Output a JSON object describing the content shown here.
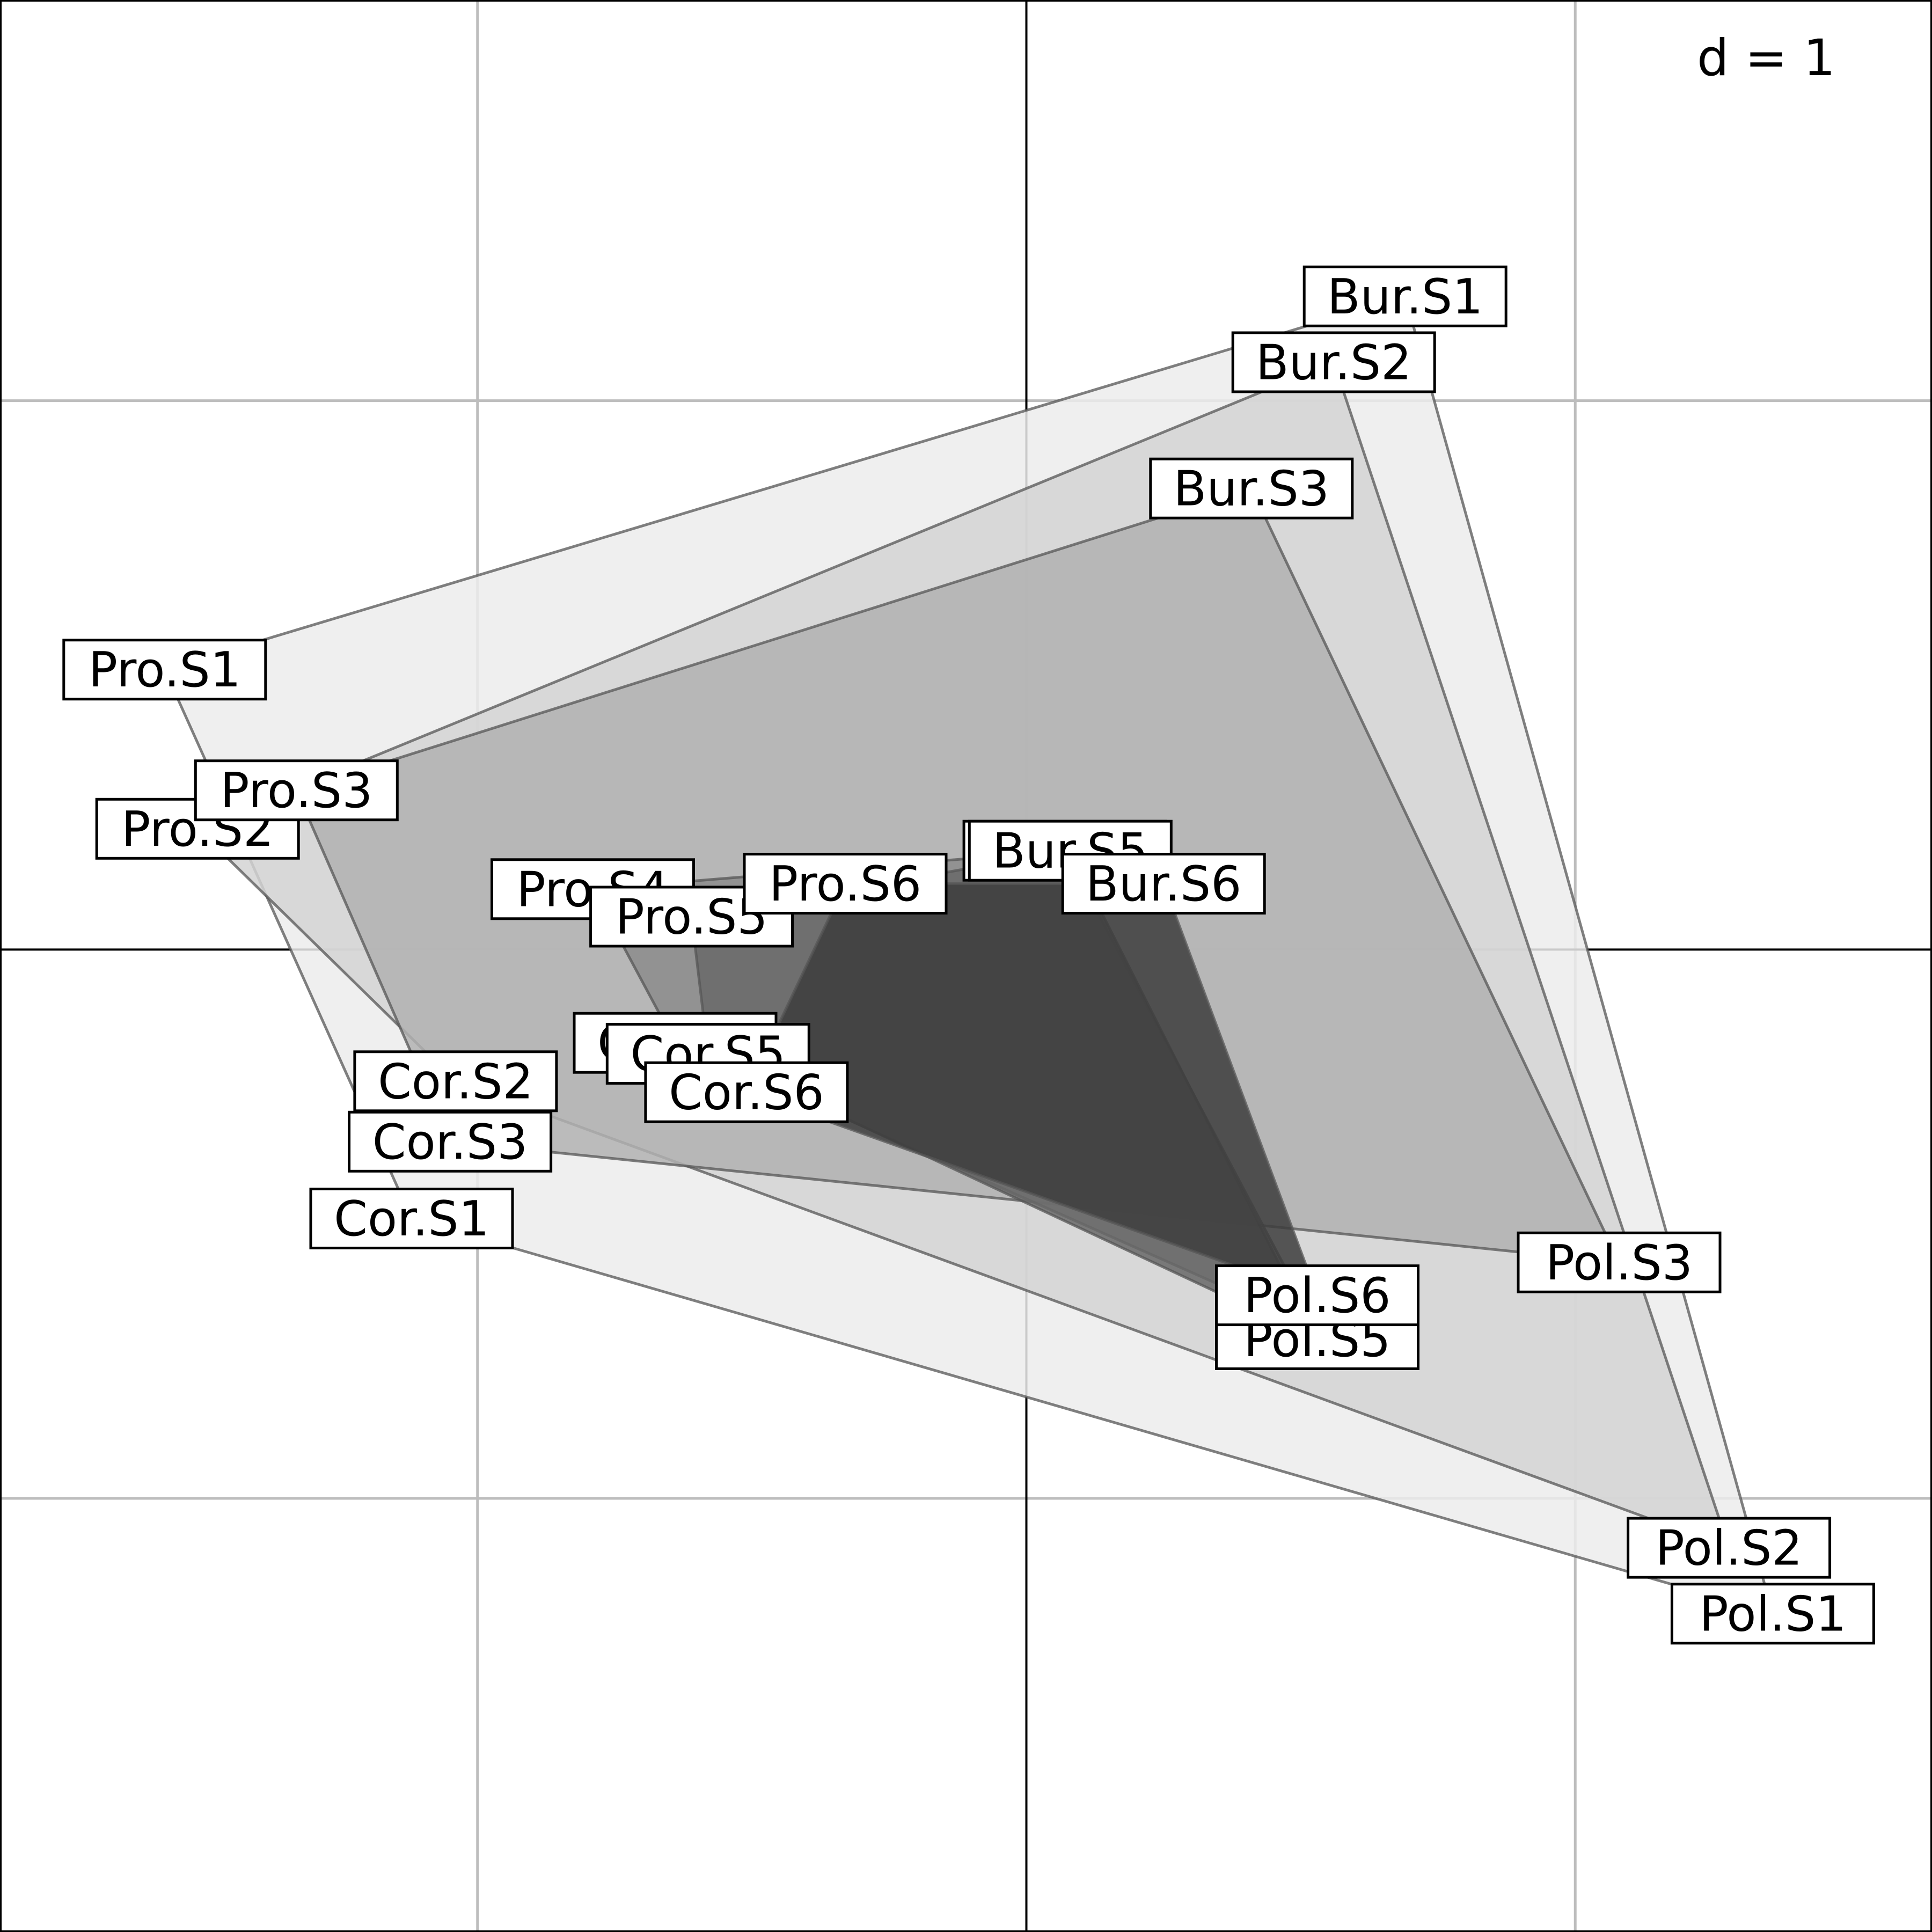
{
  "chart_data": {
    "type": "scatter",
    "scale_label": "d = 1",
    "grid_step": 1,
    "xlim": [
      -1.87,
      1.65
    ],
    "ylim": [
      -1.79,
      1.73
    ],
    "grid": true,
    "colors": {
      "grid": "#bdbdbd",
      "axis": "#000000",
      "polygon_stroke": "#555555",
      "fills": [
        "#ececec",
        "#d3d3d3",
        "#b2b2b2",
        "#8c8c8c",
        "#696969",
        "#3d3d3d"
      ]
    },
    "series": [
      {
        "group": "S1",
        "points": [
          {
            "label": "Pro.S1",
            "x": -1.57,
            "y": 0.51
          },
          {
            "label": "Bur.S1",
            "x": 0.69,
            "y": 1.19
          },
          {
            "label": "Pol.S1",
            "x": 1.36,
            "y": -1.21
          },
          {
            "label": "Cor.S1",
            "x": -1.12,
            "y": -0.49
          }
        ]
      },
      {
        "group": "S2",
        "points": [
          {
            "label": "Pro.S2",
            "x": -1.51,
            "y": 0.22
          },
          {
            "label": "Bur.S2",
            "x": 0.56,
            "y": 1.07
          },
          {
            "label": "Pol.S2",
            "x": 1.28,
            "y": -1.09
          },
          {
            "label": "Cor.S2",
            "x": -1.04,
            "y": -0.24
          }
        ]
      },
      {
        "group": "S3",
        "points": [
          {
            "label": "Pro.S3",
            "x": -1.33,
            "y": 0.29
          },
          {
            "label": "Bur.S3",
            "x": 0.41,
            "y": 0.84
          },
          {
            "label": "Pol.S3",
            "x": 1.08,
            "y": -0.57
          },
          {
            "label": "Cor.S3",
            "x": -1.05,
            "y": -0.35
          }
        ]
      },
      {
        "group": "S4",
        "points": [
          {
            "label": "Pro.S4",
            "x": -0.79,
            "y": 0.11
          },
          {
            "label": "Bur.S4",
            "x": 0.07,
            "y": 0.18
          },
          {
            "label": "Pol.S4",
            "x": 0.53,
            "y": -0.69
          },
          {
            "label": "Cor.S4",
            "x": -0.64,
            "y": -0.17
          }
        ]
      },
      {
        "group": "S5",
        "points": [
          {
            "label": "Pro.S5",
            "x": -0.61,
            "y": 0.06
          },
          {
            "label": "Bur.S5",
            "x": 0.08,
            "y": 0.18
          },
          {
            "label": "Pol.S5",
            "x": 0.53,
            "y": -0.71
          },
          {
            "label": "Cor.S5",
            "x": -0.58,
            "y": -0.19
          }
        ]
      },
      {
        "group": "S6",
        "points": [
          {
            "label": "Pro.S6",
            "x": -0.33,
            "y": 0.12
          },
          {
            "label": "Bur.S6",
            "x": 0.25,
            "y": 0.12
          },
          {
            "label": "Pol.S6",
            "x": 0.53,
            "y": -0.63
          },
          {
            "label": "Cor.S6",
            "x": -0.51,
            "y": -0.26
          }
        ]
      }
    ]
  }
}
